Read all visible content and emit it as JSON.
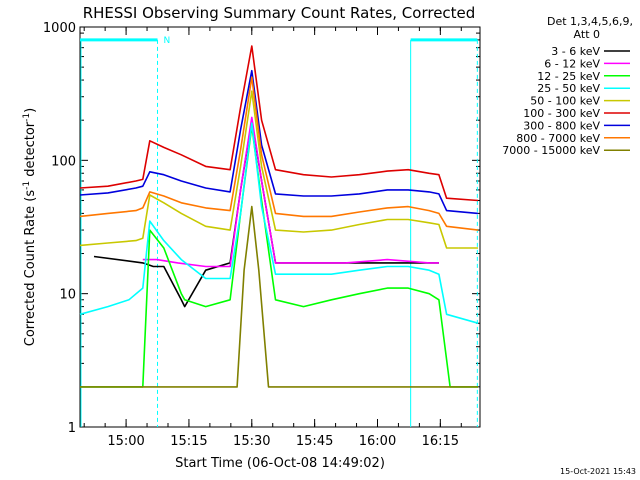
{
  "chart_data": {
    "type": "line",
    "title": "RHESSI Observing Summary Count Rates, Corrected",
    "xlabel": "Start Time (06-Oct-08 14:49:02)",
    "ylabel": "Corrected Count Rate (s",
    "ylabel_sup1": "-1",
    "ylabel_mid": " detector",
    "ylabel_sup2": "-1",
    "ylabel_end": ")",
    "ylog": true,
    "ylim": [
      1,
      1000
    ],
    "xlim": [
      "14:49:02",
      "16:24:30"
    ],
    "x_ticks": [
      "15:00",
      "15:15",
      "15:30",
      "15:45",
      "16:00",
      "16:15"
    ],
    "x_tick_minutes": [
      660,
      1560,
      2460,
      3360,
      4260,
      5160
    ],
    "y_ticks": [
      {
        "label": "1",
        "value": 1
      },
      {
        "label": "10",
        "value": 10
      },
      {
        "label": "100",
        "value": 100
      },
      {
        "label": "1000",
        "value": 1000
      }
    ],
    "legend": {
      "header": [
        "Det 1,3,4,5,6,9,",
        "Att 0"
      ],
      "placement": "right-outside"
    },
    "night_markers": {
      "label": "N",
      "x_seconds": [
        0,
        1110,
        4735,
        5690
      ],
      "color": "#00ffff",
      "level": 800
    },
    "series": [
      {
        "name": "3 - 6 keV",
        "color": "#000000",
        "x": [
          200,
          900,
          1050,
          1200,
          1450,
          1500,
          1800,
          2150,
          2300,
          2460,
          2600,
          2800,
          3200,
          3800,
          4400,
          5000,
          5140
        ],
        "y": [
          19,
          17,
          16,
          16,
          9,
          8,
          15,
          17,
          60,
          200,
          70,
          17,
          17,
          17,
          17,
          17,
          17
        ]
      },
      {
        "name": "6 - 12 keV",
        "color": "#ff00ff",
        "x": [
          900,
          1100,
          1400,
          1800,
          2150,
          2300,
          2460,
          2600,
          2800,
          3200,
          3800,
          4400,
          5000,
          5140
        ],
        "y": [
          18,
          18,
          17,
          16,
          16,
          60,
          210,
          70,
          17,
          17,
          17,
          18,
          17,
          17
        ]
      },
      {
        "name": "12 - 25 keV",
        "color": "#00ff00",
        "x": [
          0,
          900,
          1000,
          1200,
          1450,
          1500,
          1800,
          2150,
          2300,
          2460,
          2600,
          2800,
          3200,
          3600,
          4000,
          4400,
          4700,
          5000,
          5140,
          5300,
          5700
        ],
        "y": [
          2,
          2,
          30,
          22,
          10,
          9,
          8,
          9,
          40,
          180,
          50,
          9,
          8,
          9,
          10,
          11,
          11,
          10,
          9,
          2,
          2
        ]
      },
      {
        "name": "25 - 50 keV",
        "color": "#00ffff",
        "x": [
          0,
          400,
          700,
          900,
          1000,
          1200,
          1450,
          1800,
          2150,
          2300,
          2460,
          2600,
          2800,
          3200,
          3600,
          4000,
          4400,
          4700,
          5000,
          5140,
          5250,
          5700
        ],
        "y": [
          7,
          8,
          9,
          11,
          35,
          25,
          18,
          13,
          13,
          40,
          190,
          45,
          14,
          14,
          14,
          15,
          16,
          16,
          15,
          14,
          7,
          6
        ]
      },
      {
        "name": "50 - 100 keV",
        "color": "#c8c800",
        "x": [
          0,
          400,
          800,
          900,
          1000,
          1200,
          1450,
          1800,
          2150,
          2300,
          2460,
          2600,
          2800,
          3200,
          3600,
          4000,
          4400,
          4700,
          5000,
          5140,
          5250,
          5700
        ],
        "y": [
          23,
          24,
          25,
          26,
          55,
          48,
          40,
          32,
          30,
          90,
          330,
          90,
          30,
          29,
          30,
          33,
          36,
          36,
          34,
          33,
          22,
          22
        ]
      },
      {
        "name": "100 - 300 keV",
        "color": "#dd0000",
        "x": [
          0,
          400,
          800,
          900,
          1000,
          1200,
          1450,
          1800,
          2150,
          2300,
          2460,
          2600,
          2800,
          3200,
          3600,
          4000,
          4400,
          4700,
          5000,
          5140,
          5250,
          5700
        ],
        "y": [
          62,
          64,
          70,
          72,
          140,
          125,
          110,
          90,
          85,
          250,
          720,
          200,
          85,
          78,
          75,
          78,
          83,
          85,
          80,
          78,
          52,
          50
        ]
      },
      {
        "name": "300 - 800 keV",
        "color": "#0000dd",
        "x": [
          0,
          400,
          800,
          900,
          1000,
          1200,
          1450,
          1800,
          2150,
          2300,
          2460,
          2600,
          2800,
          3200,
          3600,
          4000,
          4400,
          4700,
          5000,
          5140,
          5250,
          5700
        ],
        "y": [
          55,
          57,
          62,
          64,
          82,
          78,
          70,
          62,
          58,
          170,
          470,
          130,
          56,
          54,
          54,
          56,
          60,
          60,
          58,
          56,
          42,
          40
        ]
      },
      {
        "name": "800 - 7000 keV",
        "color": "#ff7700",
        "x": [
          0,
          400,
          800,
          900,
          1000,
          1200,
          1450,
          1800,
          2150,
          2300,
          2460,
          2600,
          2800,
          3200,
          3600,
          4000,
          4400,
          4700,
          5000,
          5140,
          5250,
          5700
        ],
        "y": [
          38,
          40,
          42,
          44,
          58,
          54,
          48,
          44,
          42,
          120,
          420,
          110,
          40,
          38,
          38,
          41,
          44,
          45,
          42,
          40,
          32,
          30
        ]
      },
      {
        "name": "7000 - 15000 keV",
        "color": "#808000",
        "x": [
          0,
          900,
          1000,
          1400,
          1800,
          2150,
          2250,
          2350,
          2460,
          2560,
          2700,
          2800,
          3200,
          3800,
          4400,
          5000,
          5700
        ],
        "y": [
          2,
          2,
          2,
          2,
          2,
          2,
          2,
          15,
          45,
          15,
          2,
          2,
          2,
          2,
          2,
          2,
          2
        ]
      }
    ],
    "footer_timestamp": "15-Oct-2021 15:43"
  }
}
